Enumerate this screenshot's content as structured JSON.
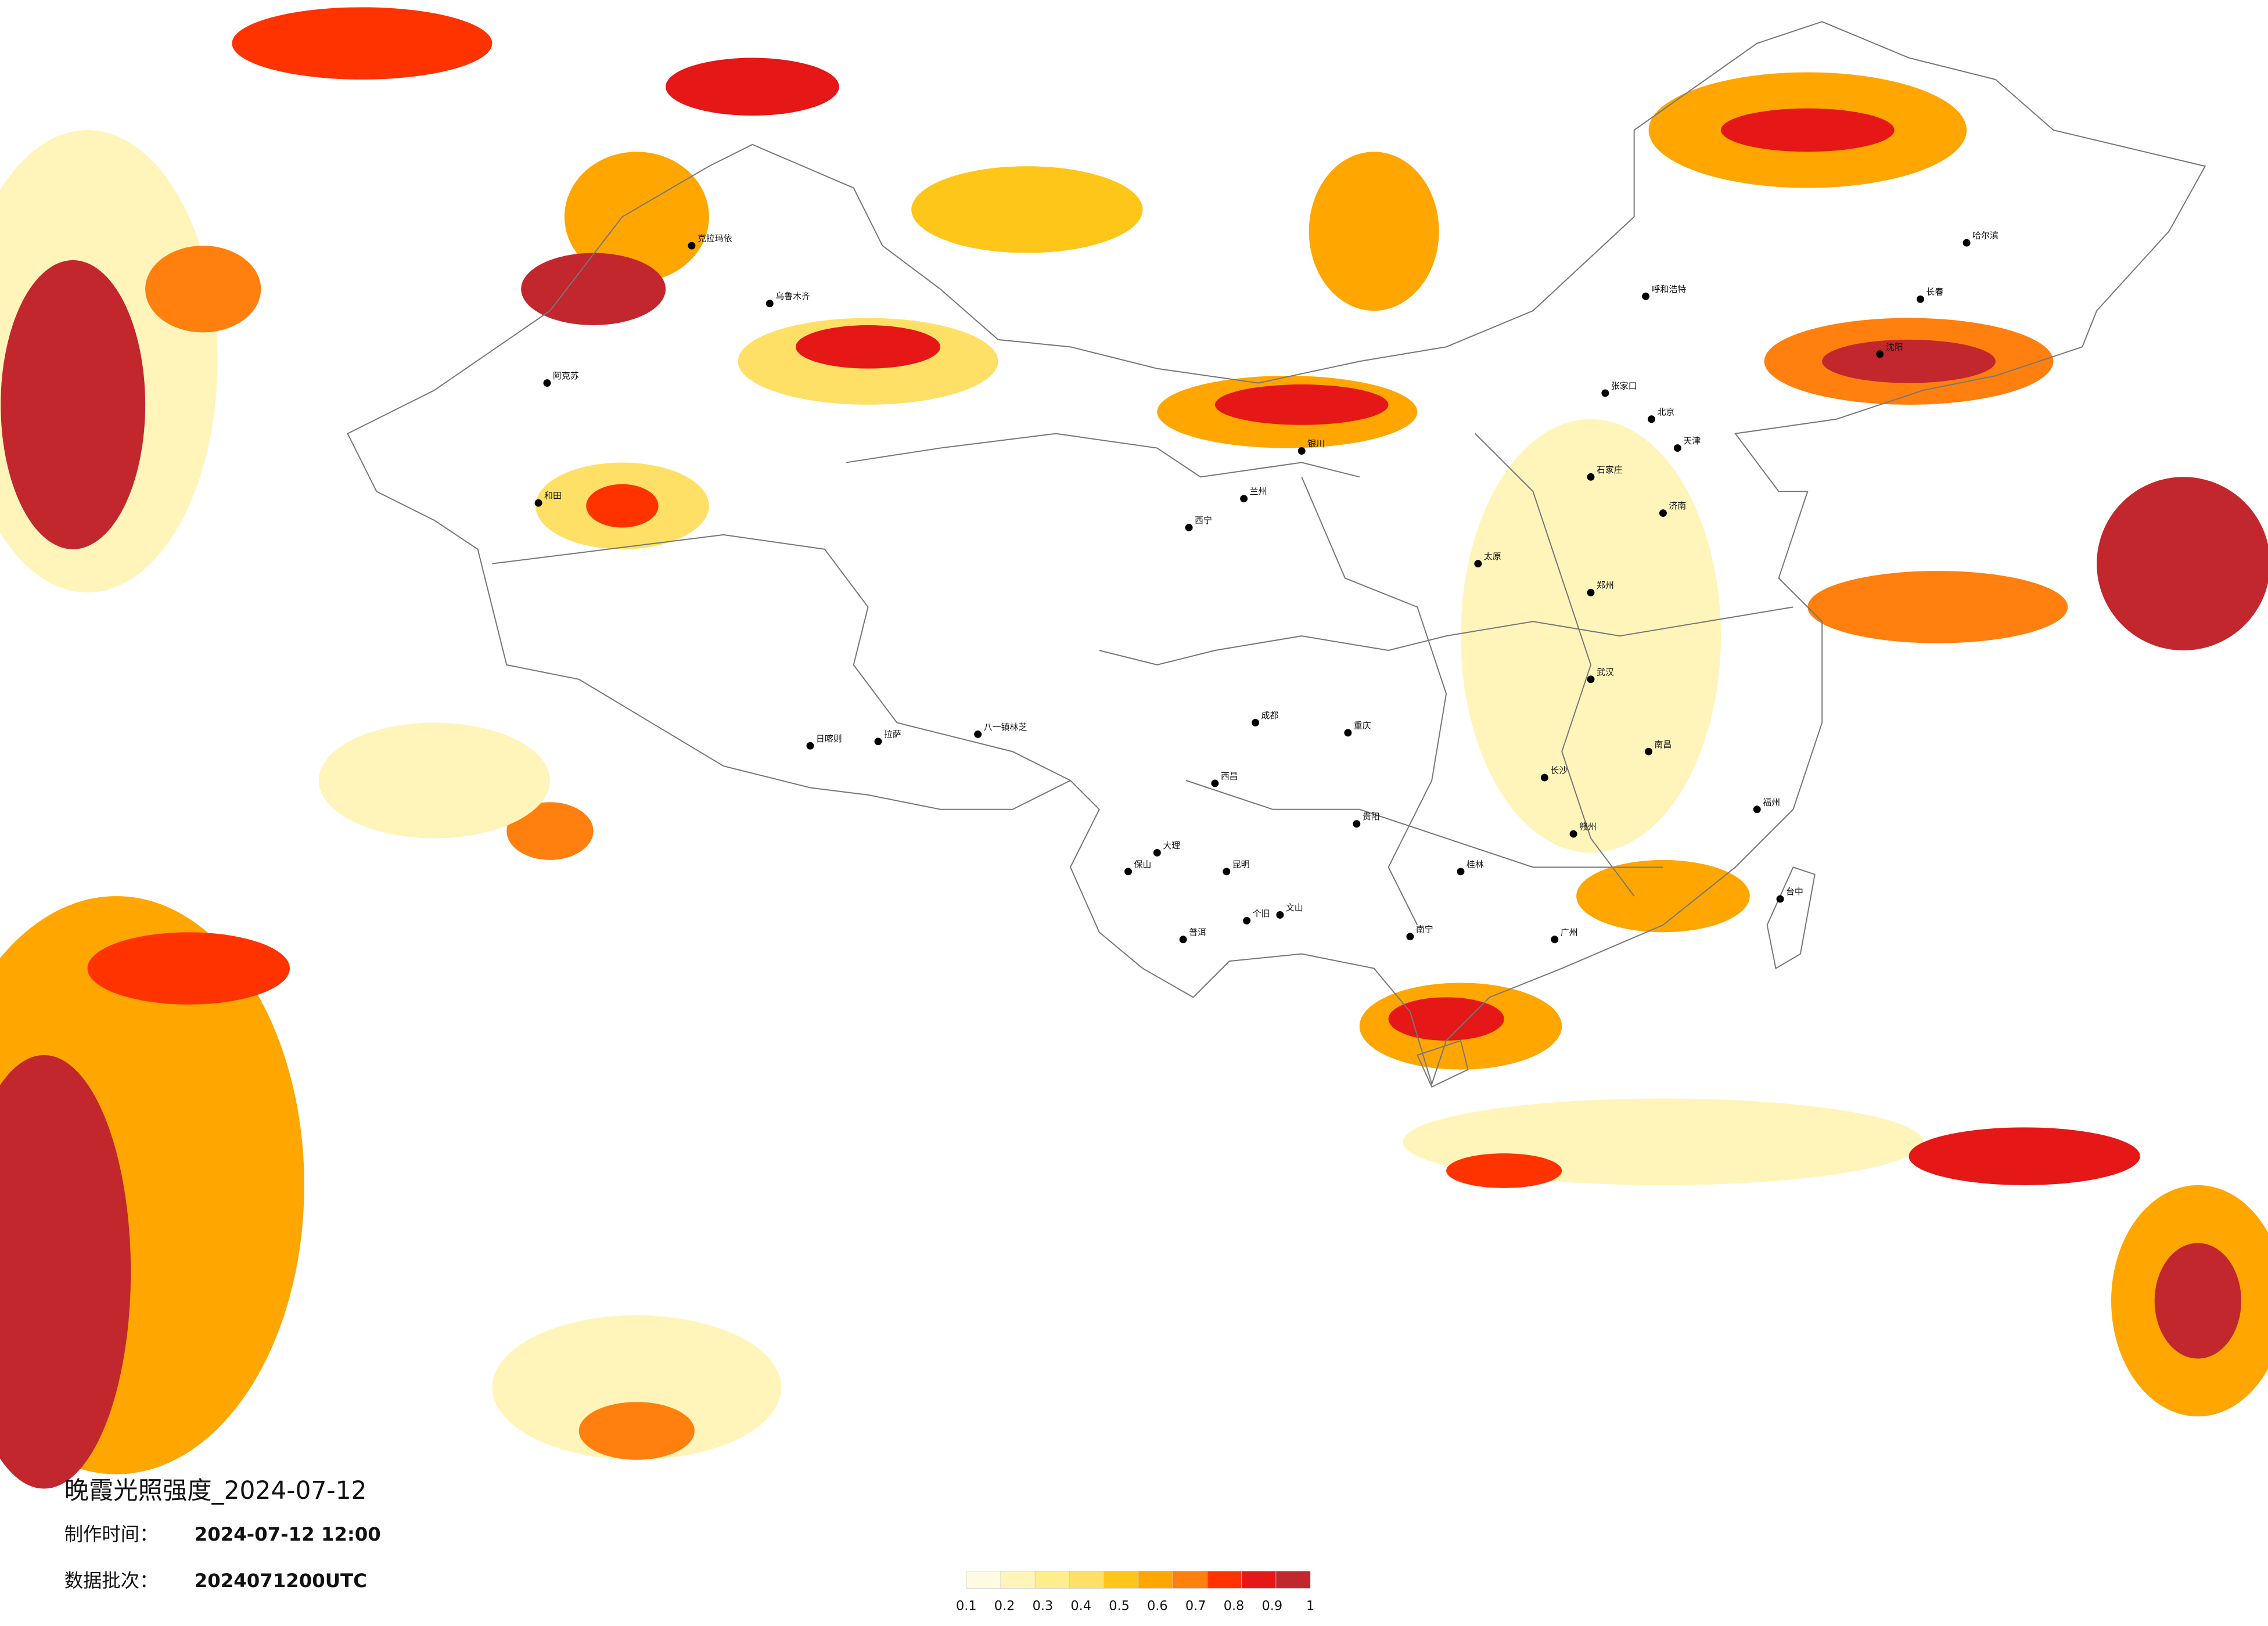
{
  "header": {
    "title": "晚霞光照强度_2024-07-12",
    "made_label": "制作时间：",
    "made_time": "2024-07-12 12:00",
    "batch_label": "数据批次：",
    "batch": "2024071200UTC"
  },
  "legend": {
    "lim": [
      0.1,
      1
    ],
    "ticks": [
      0.1,
      0.2,
      0.3,
      0.4,
      0.5,
      0.6,
      0.7,
      0.8,
      0.9,
      1
    ],
    "colors": [
      "#fffbe3",
      "#fff5bb",
      "#ffee8c",
      "#ffe066",
      "#ffc61a",
      "#ffa600",
      "#ff7f0f",
      "#ff3300",
      "#e51717",
      "#c1272d"
    ]
  },
  "cities": [
    "乌鲁木齐",
    "克拉玛依",
    "阿克苏",
    "和田",
    "拉萨",
    "日喀则",
    "八一镇林芝",
    "西宁",
    "呼和浩特",
    "北京",
    "张家口",
    "长春",
    "哈尔滨",
    "重庆",
    "贵阳",
    "昆明",
    "南宁",
    "长沙",
    "台中",
    "赣州",
    "桂林",
    "大理",
    "保山",
    "西昌",
    "普洱",
    "个旧",
    "文山",
    "太原",
    "济南",
    "郑州",
    "武汉",
    "南昌",
    "福州",
    "广州",
    "成都",
    "兰州",
    "银川",
    "石家庄",
    "天津",
    "沈阳"
  ]
}
